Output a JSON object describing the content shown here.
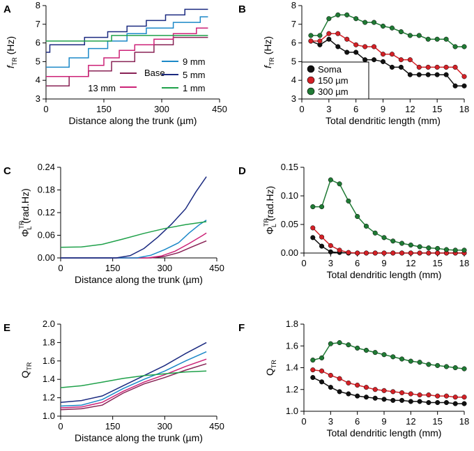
{
  "panel_labels": [
    "A",
    "B",
    "C",
    "D",
    "E",
    "F"
  ],
  "chart_data": [
    {
      "panel": "A",
      "type": "line",
      "xlabel": "Distance along the trunk (µm)",
      "ylabel": "f_TR (Hz)",
      "ylabel_parts": {
        "main": "f",
        "sub": "TR",
        "unit": " (Hz)"
      },
      "xlim": [
        0,
        450
      ],
      "ylim": [
        3,
        8
      ],
      "xticks": [
        0,
        150,
        300,
        450
      ],
      "yticks": [
        3,
        4,
        5,
        6,
        7,
        8
      ],
      "legend": [
        "Base",
        "13 mm",
        "9 mm",
        "5 mm",
        "1 mm"
      ],
      "series": [
        {
          "name": "Base",
          "color": "#882255",
          "x": [
            0,
            60,
            60,
            110,
            110,
            170,
            170,
            230,
            230,
            280,
            280,
            330,
            330,
            420
          ],
          "y": [
            3.7,
            3.7,
            4.2,
            4.2,
            4.5,
            4.5,
            5.0,
            5.0,
            5.5,
            5.5,
            5.9,
            5.9,
            6.3,
            6.3
          ]
        },
        {
          "name": "13 mm",
          "color": "#cc2277",
          "x": [
            0,
            110,
            110,
            150,
            150,
            190,
            190,
            230,
            230,
            280,
            280,
            330,
            330,
            390,
            390,
            420
          ],
          "y": [
            4.2,
            4.2,
            4.8,
            4.8,
            5.2,
            5.2,
            5.6,
            5.6,
            5.9,
            5.9,
            6.2,
            6.2,
            6.5,
            6.5,
            6.8,
            6.8
          ]
        },
        {
          "name": "9 mm",
          "color": "#1b88c8",
          "x": [
            0,
            60,
            60,
            110,
            110,
            160,
            160,
            210,
            210,
            260,
            260,
            330,
            330,
            400,
            400,
            420
          ],
          "y": [
            4.7,
            4.7,
            5.2,
            5.2,
            5.7,
            5.7,
            6.1,
            6.1,
            6.5,
            6.5,
            6.8,
            6.8,
            7.1,
            7.1,
            7.4,
            7.4
          ]
        },
        {
          "name": "5 mm",
          "color": "#1b2a80",
          "x": [
            0,
            10,
            10,
            100,
            100,
            160,
            160,
            210,
            210,
            260,
            260,
            310,
            310,
            360,
            360,
            420
          ],
          "y": [
            5.5,
            5.5,
            5.9,
            5.9,
            6.3,
            6.3,
            6.6,
            6.6,
            6.9,
            6.9,
            7.2,
            7.2,
            7.5,
            7.5,
            7.8,
            7.8
          ]
        },
        {
          "name": "1 mm",
          "color": "#1fa14a",
          "x": [
            0,
            170,
            170,
            420
          ],
          "y": [
            6.1,
            6.1,
            6.4,
            6.4
          ]
        }
      ]
    },
    {
      "panel": "B",
      "type": "line",
      "xlabel": "Total dendritic length (mm)",
      "ylabel": "f_TR (Hz)",
      "ylabel_parts": {
        "main": "f",
        "sub": "TR",
        "unit": " (Hz)"
      },
      "xlim": [
        0,
        18
      ],
      "ylim": [
        3,
        8
      ],
      "xticks": [
        0,
        3,
        6,
        9,
        12,
        15,
        18
      ],
      "yticks": [
        3,
        4,
        5,
        6,
        7,
        8
      ],
      "legend": [
        "Soma",
        "150 µm",
        "300 µm"
      ],
      "x": [
        1,
        2,
        3,
        4,
        5,
        6,
        7,
        8,
        9,
        10,
        11,
        12,
        13,
        14,
        15,
        16,
        17,
        18
      ],
      "series": [
        {
          "name": "Soma",
          "color": "#111111",
          "values": [
            6.1,
            5.9,
            6.2,
            5.8,
            5.5,
            5.5,
            5.1,
            5.1,
            5.0,
            4.7,
            4.7,
            4.3,
            4.3,
            4.3,
            4.3,
            4.3,
            3.7,
            3.7
          ]
        },
        {
          "name": "150 µm",
          "color": "#d42026",
          "values": [
            6.1,
            6.1,
            6.5,
            6.5,
            6.2,
            5.9,
            5.8,
            5.8,
            5.4,
            5.4,
            5.1,
            5.1,
            4.7,
            4.7,
            4.7,
            4.7,
            4.7,
            4.2
          ]
        },
        {
          "name": "300 µm",
          "color": "#1f7a34",
          "values": [
            6.4,
            6.4,
            7.3,
            7.5,
            7.5,
            7.3,
            7.1,
            7.1,
            6.9,
            6.8,
            6.6,
            6.4,
            6.4,
            6.2,
            6.2,
            6.2,
            5.8,
            5.8
          ]
        }
      ]
    },
    {
      "panel": "C",
      "type": "line",
      "xlabel": "Distance along the trunk (µm)",
      "ylabel": "Φ_L^TR (rad.Hz)",
      "ylabel_parts": {
        "main": "Φ",
        "sub": "L",
        "sup": "TR",
        "unit": " (rad.Hz)"
      },
      "xlim": [
        0,
        450
      ],
      "ylim": [
        0,
        0.24
      ],
      "xticks": [
        0,
        150,
        300,
        450
      ],
      "yticks": [
        "0.00",
        "0.06",
        "0.12",
        "0.18",
        "0.24"
      ],
      "series": [
        {
          "name": "Base",
          "color": "#882255",
          "x": [
            0,
            260,
            300,
            340,
            380,
            420
          ],
          "y": [
            0,
            0,
            0.004,
            0.014,
            0.03,
            0.045
          ]
        },
        {
          "name": "13 mm",
          "color": "#cc2277",
          "x": [
            0,
            250,
            290,
            330,
            370,
            410,
            420
          ],
          "y": [
            0,
            0,
            0.005,
            0.018,
            0.038,
            0.06,
            0.066
          ]
        },
        {
          "name": "9 mm",
          "color": "#1b88c8",
          "x": [
            0,
            220,
            260,
            300,
            340,
            370,
            400,
            420
          ],
          "y": [
            0,
            0,
            0.007,
            0.022,
            0.04,
            0.066,
            0.088,
            0.1
          ]
        },
        {
          "name": "5 mm",
          "color": "#1b2a80",
          "x": [
            0,
            160,
            200,
            240,
            280,
            320,
            360,
            390,
            420
          ],
          "y": [
            0,
            0,
            0.006,
            0.025,
            0.055,
            0.09,
            0.13,
            0.175,
            0.215
          ]
        },
        {
          "name": "1 mm",
          "color": "#1fa14a",
          "x": [
            0,
            60,
            120,
            180,
            240,
            300,
            360,
            420
          ],
          "y": [
            0.028,
            0.029,
            0.036,
            0.05,
            0.065,
            0.078,
            0.088,
            0.096
          ]
        }
      ]
    },
    {
      "panel": "D",
      "type": "line",
      "xlabel": "Total dendritic length (mm)",
      "ylabel": "Φ_L^TR (rad.Hz)",
      "ylabel_parts": {
        "main": "Φ",
        "sub": "L",
        "sup": "TR",
        "unit": " (rad.Hz)"
      },
      "xlim": [
        0,
        18
      ],
      "ylim": [
        0,
        0.15
      ],
      "xticks": [
        0,
        3,
        6,
        9,
        12,
        15,
        18
      ],
      "yticks": [
        "0.00",
        "0.05",
        "0.10",
        "0.15"
      ],
      "x": [
        1,
        2,
        3,
        4,
        5,
        6,
        7,
        8,
        9,
        10,
        11,
        12,
        13,
        14,
        15,
        16,
        17,
        18
      ],
      "series": [
        {
          "name": "Soma",
          "color": "#111111",
          "values": [
            0.027,
            0.012,
            0.002,
            0.001,
            0,
            0,
            0,
            0,
            0,
            0,
            0,
            0,
            0,
            0,
            0,
            0,
            0,
            0
          ]
        },
        {
          "name": "150 µm",
          "color": "#d42026",
          "values": [
            0.044,
            0.028,
            0.013,
            0.005,
            0.001,
            0,
            0,
            0,
            0,
            0,
            0,
            0,
            0,
            0,
            0,
            0,
            0,
            0
          ]
        },
        {
          "name": "300 µm",
          "color": "#1f7a34",
          "values": [
            0.081,
            0.081,
            0.128,
            0.121,
            0.091,
            0.064,
            0.047,
            0.035,
            0.027,
            0.021,
            0.017,
            0.014,
            0.011,
            0.009,
            0.008,
            0.006,
            0.005,
            0.005
          ]
        }
      ]
    },
    {
      "panel": "E",
      "type": "line",
      "xlabel": "Distance along the trunk (µm)",
      "ylabel": "Q_TR",
      "ylabel_parts": {
        "main": "Q",
        "sub": "TR",
        "unit": ""
      },
      "xlim": [
        0,
        450
      ],
      "ylim": [
        1.0,
        2.0
      ],
      "xticks": [
        0,
        150,
        300,
        450
      ],
      "yticks": [
        "1.0",
        "1.2",
        "1.4",
        "1.6",
        "1.8",
        "2.0"
      ],
      "series": [
        {
          "name": "Base",
          "color": "#882255",
          "x": [
            0,
            60,
            120,
            180,
            240,
            300,
            360,
            420
          ],
          "y": [
            1.07,
            1.08,
            1.12,
            1.25,
            1.35,
            1.42,
            1.5,
            1.57
          ]
        },
        {
          "name": "13 mm",
          "color": "#cc2277",
          "x": [
            0,
            60,
            120,
            180,
            240,
            300,
            360,
            420
          ],
          "y": [
            1.09,
            1.1,
            1.15,
            1.27,
            1.37,
            1.45,
            1.54,
            1.62
          ]
        },
        {
          "name": "9 mm",
          "color": "#1b88c8",
          "x": [
            0,
            60,
            120,
            180,
            240,
            300,
            360,
            420
          ],
          "y": [
            1.11,
            1.12,
            1.18,
            1.3,
            1.4,
            1.49,
            1.6,
            1.7
          ]
        },
        {
          "name": "5 mm",
          "color": "#1b2a80",
          "x": [
            0,
            60,
            120,
            180,
            240,
            300,
            360,
            420
          ],
          "y": [
            1.15,
            1.17,
            1.22,
            1.33,
            1.44,
            1.55,
            1.68,
            1.8
          ]
        },
        {
          "name": "1 mm",
          "color": "#1fa14a",
          "x": [
            0,
            60,
            120,
            180,
            240,
            300,
            360,
            420
          ],
          "y": [
            1.31,
            1.33,
            1.37,
            1.41,
            1.44,
            1.46,
            1.48,
            1.49
          ]
        }
      ]
    },
    {
      "panel": "F",
      "type": "line",
      "xlabel": "Total dendritic length (mm)",
      "ylabel": "Q_TR",
      "ylabel_parts": {
        "main": "Q",
        "sub": "TR",
        "unit": ""
      },
      "xlim": [
        0,
        18
      ],
      "ylim": [
        1.0,
        1.8
      ],
      "xticks": [
        0,
        3,
        6,
        9,
        12,
        15,
        18
      ],
      "yticks": [
        "1.0",
        "1.2",
        "1.4",
        "1.6",
        "1.8"
      ],
      "x": [
        1,
        2,
        3,
        4,
        5,
        6,
        7,
        8,
        9,
        10,
        11,
        12,
        13,
        14,
        15,
        16,
        17,
        18
      ],
      "series": [
        {
          "name": "Soma",
          "color": "#111111",
          "values": [
            1.31,
            1.27,
            1.22,
            1.18,
            1.16,
            1.14,
            1.13,
            1.12,
            1.11,
            1.1,
            1.1,
            1.09,
            1.09,
            1.08,
            1.08,
            1.08,
            1.07,
            1.07
          ]
        },
        {
          "name": "150 µm",
          "color": "#d42026",
          "values": [
            1.38,
            1.37,
            1.33,
            1.3,
            1.26,
            1.24,
            1.22,
            1.2,
            1.19,
            1.18,
            1.17,
            1.16,
            1.15,
            1.15,
            1.14,
            1.14,
            1.13,
            1.13
          ]
        },
        {
          "name": "300 µm",
          "color": "#1f7a34",
          "values": [
            1.47,
            1.49,
            1.62,
            1.63,
            1.61,
            1.58,
            1.56,
            1.54,
            1.52,
            1.5,
            1.48,
            1.46,
            1.45,
            1.43,
            1.42,
            1.41,
            1.4,
            1.39
          ]
        }
      ]
    }
  ]
}
